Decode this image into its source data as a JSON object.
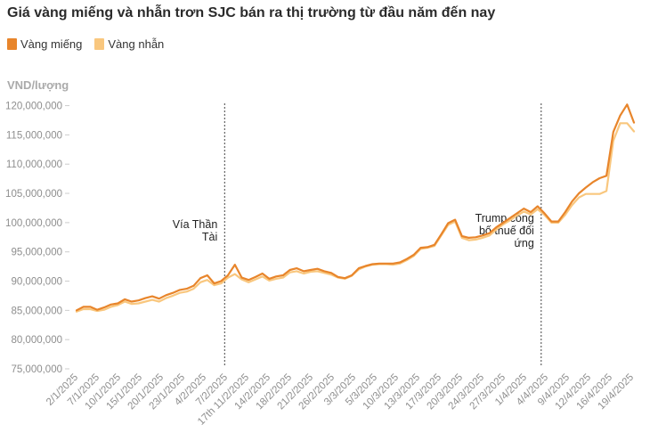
{
  "chart_data": {
    "type": "line",
    "title": "Giá vàng miếng và nhẫn trơn SJC bán ra thị trường từ đầu năm đến nay",
    "ylabel": "VND/lượng",
    "ylim": [
      75000000,
      121000000
    ],
    "y_ticks": [
      75000000,
      80000000,
      85000000,
      90000000,
      95000000,
      100000000,
      105000000,
      110000000,
      115000000,
      120000000
    ],
    "y_tick_labels": [
      "75,000,000",
      "80,000,000",
      "85,000,000",
      "90,000,000",
      "95,000,000",
      "100,000,000",
      "105,000,000",
      "110,000,000",
      "115,000,000",
      "120,000,000"
    ],
    "x_tick_labels": [
      "2/1/2025",
      "7/1/2025",
      "10/1/2025",
      "15/1/2025",
      "20/1/2025",
      "23/1/2025",
      "4/2/2025",
      "7/2/2025",
      "17th 11/2/2025",
      "14/2/2025",
      "18/2/2025",
      "21/2/2025",
      "26/2/2025",
      "3/3/2025",
      "5/3/2025",
      "10/3/2025",
      "13/3/2025",
      "17/3/2025",
      "20/3/2025",
      "24/3/2025",
      "27/3/2025",
      "1/4/2025",
      "4/4/2025",
      "9/4/2025",
      "12/4/2025",
      "16/4/2025",
      "19/4/2025"
    ],
    "legend_position": "top-left",
    "grid": false,
    "series": [
      {
        "name": "Vàng miếng",
        "color": "#e8852b",
        "values": [
          85000000,
          85600000,
          85600000,
          85100000,
          85500000,
          86000000,
          86200000,
          86900000,
          86500000,
          86700000,
          87100000,
          87400000,
          87000000,
          87600000,
          88000000,
          88500000,
          88700000,
          89200000,
          90500000,
          91000000,
          89600000,
          90000000,
          91000000,
          92800000,
          90600000,
          90200000,
          90700000,
          91300000,
          90400000,
          90800000,
          91000000,
          91900000,
          92200000,
          91700000,
          91900000,
          92100000,
          91700000,
          91400000,
          90700000,
          90500000,
          91000000,
          92200000,
          92600000,
          92900000,
          93000000,
          93000000,
          93000000,
          93200000,
          93800000,
          94500000,
          95700000,
          95800000,
          96200000,
          98000000,
          99900000,
          100500000,
          97700000,
          97400000,
          97500000,
          97800000,
          98200000,
          99200000,
          100000000,
          100800000,
          101600000,
          102400000,
          101800000,
          102800000,
          101600000,
          100200000,
          100200000,
          101800000,
          103600000,
          105000000,
          106000000,
          106900000,
          107600000,
          108000000,
          115500000,
          118300000,
          120200000,
          117100000
        ]
      },
      {
        "name": "Vàng nhẫn",
        "color": "#f9c77e",
        "values": [
          84800000,
          85200000,
          85200000,
          84900000,
          85100000,
          85600000,
          85900000,
          86500000,
          86100000,
          86200000,
          86500000,
          86800000,
          86500000,
          87100000,
          87500000,
          88000000,
          88200000,
          88700000,
          89800000,
          90200000,
          89300000,
          89600000,
          90600000,
          91200000,
          90300000,
          89800000,
          90300000,
          90800000,
          90100000,
          90400000,
          90600000,
          91500000,
          91700000,
          91300000,
          91600000,
          91700000,
          91400000,
          91100000,
          90600000,
          90400000,
          90900000,
          92000000,
          92500000,
          92800000,
          92900000,
          92900000,
          92800000,
          93000000,
          93600000,
          94300000,
          95500000,
          95700000,
          96000000,
          97800000,
          99600000,
          100200000,
          97400000,
          97000000,
          97100000,
          97400000,
          97800000,
          98800000,
          99700000,
          100400000,
          101200000,
          101900000,
          101400000,
          102300000,
          101300000,
          100000000,
          100000000,
          101300000,
          103000000,
          104300000,
          104900000,
          104900000,
          104900000,
          105400000,
          114000000,
          117000000,
          117000000,
          115600000
        ]
      }
    ],
    "annotations": [
      {
        "text_lines": [
          "Vía Thần",
          "Tài"
        ],
        "at_index": 21,
        "align": "end"
      },
      {
        "text_lines": [
          "Trump công",
          "bố thuế đối",
          "ứng"
        ],
        "at_index": 67,
        "align": "end"
      }
    ]
  },
  "legend": {
    "items": [
      {
        "label": "Vàng miếng",
        "color": "#e8852b"
      },
      {
        "label": "Vàng nhẫn",
        "color": "#f9c77e"
      }
    ]
  }
}
